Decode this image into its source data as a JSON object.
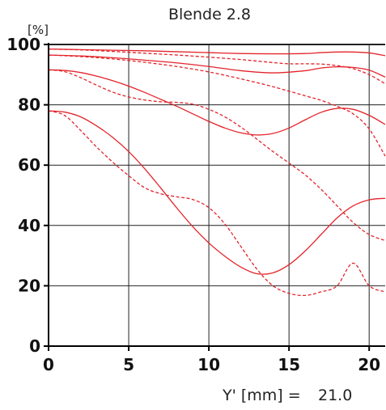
{
  "chart_data": {
    "type": "line",
    "title": "Blende 2.8",
    "ylabel": "[%]",
    "xlabel": "Y' [mm] =",
    "xlabel_value": "21.0",
    "xlim": [
      0,
      21
    ],
    "ylim": [
      0,
      100
    ],
    "xticks": [
      0,
      5,
      10,
      15,
      20
    ],
    "yticks": [
      0,
      20,
      40,
      60,
      80,
      100
    ],
    "xtick_labels": [
      "0",
      "5",
      "10",
      "15",
      "20"
    ],
    "ytick_labels": [
      "0",
      "20",
      "40",
      "60",
      "80",
      "100"
    ],
    "grid": true,
    "colors": {
      "series": "#e3242b",
      "grid": "#222222",
      "axis": "#000000"
    },
    "series": [
      {
        "style": "solid",
        "x": [
          0,
          2,
          4,
          6,
          8,
          10,
          12,
          14,
          16,
          17,
          18,
          19,
          20,
          21
        ],
        "y": [
          98.5,
          98.3,
          98.1,
          97.9,
          97.6,
          97.3,
          97.0,
          96.9,
          97.0,
          97.3,
          97.5,
          97.5,
          97.2,
          96.3
        ]
      },
      {
        "style": "dashed",
        "x": [
          0,
          2,
          4,
          6,
          8,
          10,
          12,
          14,
          15,
          16,
          17,
          18,
          19,
          20,
          21
        ],
        "y": [
          98.5,
          98.2,
          97.7,
          97.1,
          96.5,
          95.8,
          95.0,
          94.0,
          93.6,
          93.6,
          93.5,
          93.0,
          92.0,
          90.0,
          87.0
        ]
      },
      {
        "style": "solid",
        "x": [
          0,
          2,
          4,
          6,
          8,
          10,
          12,
          14,
          16,
          17,
          18,
          19,
          20,
          21
        ],
        "y": [
          96.5,
          96.2,
          95.6,
          94.8,
          93.9,
          92.7,
          91.3,
          90.6,
          91.3,
          92.2,
          92.6,
          92.4,
          91.5,
          89.2
        ]
      },
      {
        "style": "dashed",
        "x": [
          0,
          2,
          4,
          6,
          8,
          10,
          12,
          14,
          16,
          17,
          18,
          19,
          20,
          21
        ],
        "y": [
          96.5,
          96.0,
          95.2,
          94.1,
          92.7,
          90.9,
          88.6,
          86.0,
          83.0,
          81.5,
          79.5,
          77.0,
          72.0,
          63.0
        ]
      },
      {
        "style": "solid",
        "x": [
          0,
          1,
          2,
          3,
          4,
          5,
          6,
          7,
          8,
          9,
          10,
          11,
          12,
          13,
          14,
          15,
          16,
          17,
          18,
          19,
          20,
          21
        ],
        "y": [
          91.6,
          91.4,
          90.7,
          89.5,
          88.0,
          86.2,
          84.1,
          81.8,
          79.5,
          77.0,
          74.5,
          72.3,
          70.7,
          70.0,
          70.5,
          72.3,
          75.0,
          77.5,
          78.8,
          78.5,
          76.5,
          73.5
        ]
      },
      {
        "style": "dashed",
        "x": [
          0,
          1,
          2,
          3,
          4,
          5,
          6,
          7,
          8,
          9,
          10,
          11,
          12,
          13,
          14,
          15,
          16,
          17,
          18,
          19,
          20,
          21
        ],
        "y": [
          91.6,
          91.0,
          89.0,
          86.5,
          84.2,
          82.6,
          81.6,
          81.0,
          80.8,
          80.2,
          78.5,
          76.0,
          72.6,
          68.6,
          64.5,
          60.7,
          56.8,
          52.0,
          46.5,
          41.0,
          37.0,
          35.0
        ]
      },
      {
        "style": "solid",
        "x": [
          0,
          1,
          2,
          3,
          4,
          5,
          6,
          7,
          8,
          9,
          10,
          11,
          12,
          13,
          14,
          15,
          16,
          17,
          18,
          19,
          20,
          21
        ],
        "y": [
          78.0,
          77.6,
          76.0,
          73.0,
          69.2,
          64.5,
          58.8,
          52.4,
          45.8,
          39.6,
          34.2,
          29.8,
          26.2,
          24.0,
          24.3,
          27.0,
          31.5,
          37.0,
          42.5,
          46.5,
          48.5,
          49.0
        ]
      },
      {
        "style": "dashed",
        "x": [
          0,
          1,
          2,
          3,
          4,
          5,
          6,
          7,
          8,
          9,
          10,
          11,
          12,
          13,
          14,
          15,
          16,
          17,
          18,
          19,
          20,
          21
        ],
        "y": [
          78.0,
          76.5,
          71.5,
          66.0,
          61.0,
          56.5,
          52.5,
          50.5,
          49.5,
          48.6,
          45.9,
          40.5,
          33.0,
          25.5,
          20.0,
          17.5,
          16.8,
          18.0,
          20.0,
          27.5,
          20.0,
          18.0
        ]
      }
    ]
  }
}
